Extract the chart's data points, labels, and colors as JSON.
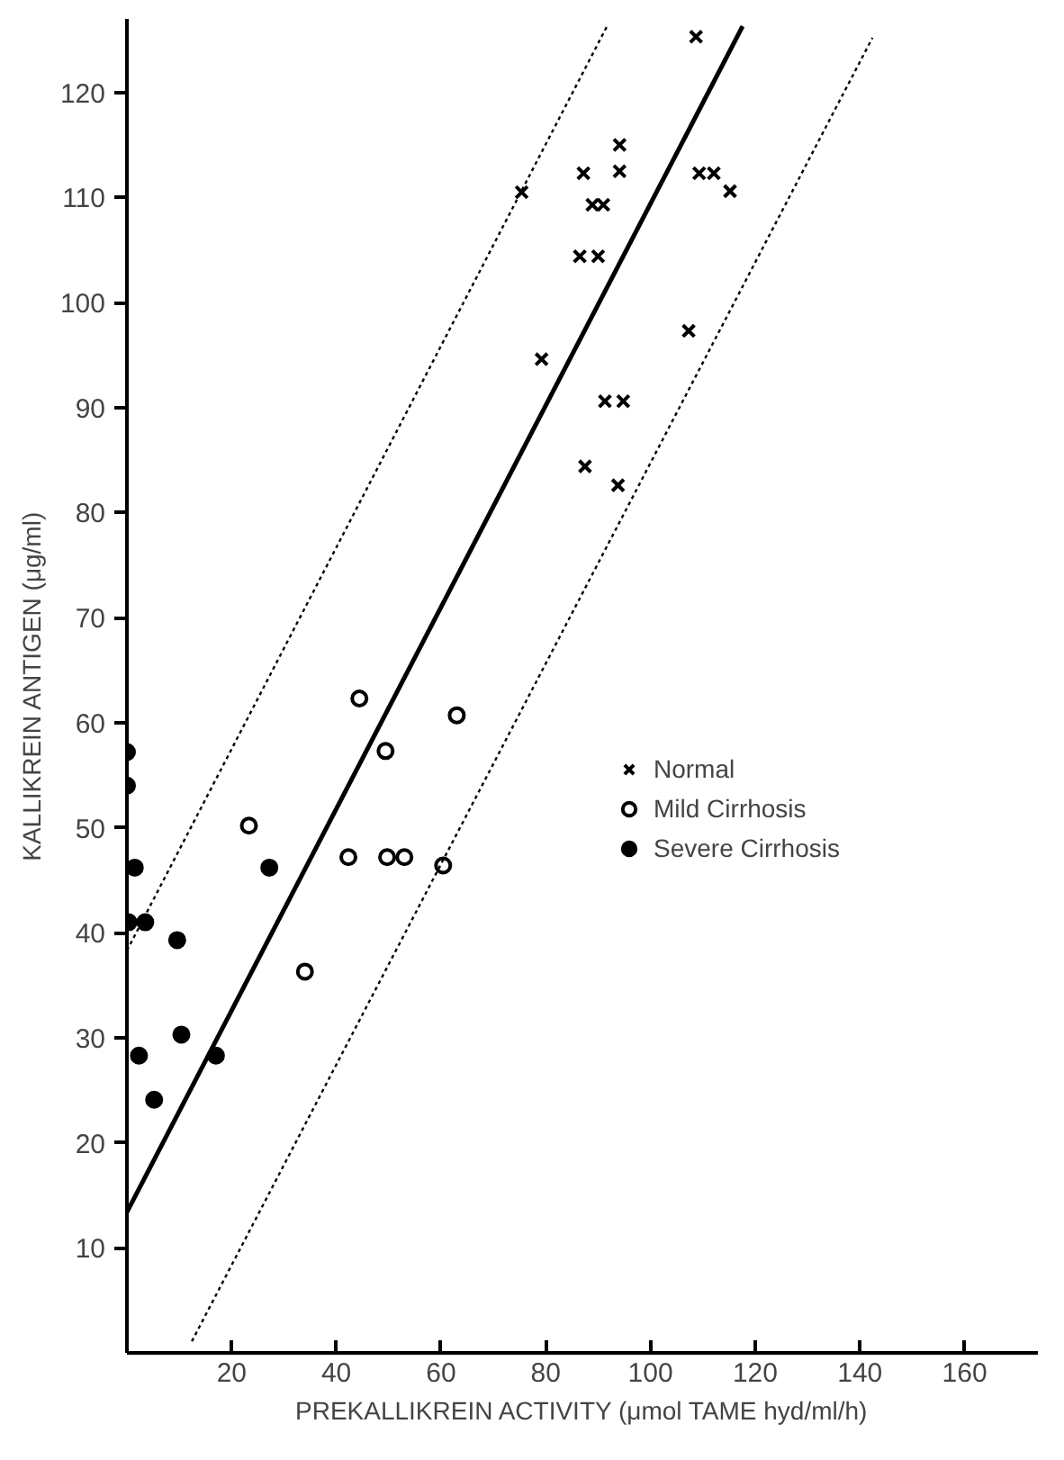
{
  "chart_data": {
    "type": "scatter",
    "xlabel": "PREKALLIKREIN ACTIVITY (μmol TAME hyd/ml/h)",
    "ylabel": "KALLIKREIN ANTIGEN (μg/ml)",
    "xlim": [
      0,
      174
    ],
    "ylim": [
      0,
      127
    ],
    "xticks": [
      20,
      40,
      60,
      80,
      100,
      120,
      140,
      160
    ],
    "yticks": [
      10,
      20,
      30,
      40,
      50,
      60,
      70,
      80,
      90,
      100,
      110,
      120
    ],
    "grid": false,
    "legend": "right",
    "series": [
      {
        "name": "Normal",
        "color": "#000000",
        "marker": "cross",
        "x": [
          108.7,
          75.4,
          87.2,
          94.1,
          94.1,
          88.9,
          91,
          86.5,
          90,
          107.3,
          79.2,
          91.3,
          94.8,
          87.5,
          93.8,
          109.3,
          112.1,
          115.2
        ],
        "values": [
          125.3,
          110.5,
          112.3,
          115,
          112.5,
          109.3,
          109.3,
          104.4,
          104.4,
          97.3,
          94.6,
          90.6,
          90.6,
          84.4,
          82.6,
          112.3,
          112.3,
          110.6
        ]
      },
      {
        "name": "Mild Cirrhosis",
        "color": "#000000",
        "marker": "circle_open",
        "x": [
          44.4,
          63,
          49.4,
          23.3,
          42.3,
          49.7,
          53,
          60.4,
          34
        ],
        "values": [
          62.3,
          60.7,
          57.3,
          50.2,
          47.2,
          47.2,
          47.2,
          46.4,
          36.3
        ]
      },
      {
        "name": "Severe Cirrhosis",
        "color": "#000000",
        "marker": "circle",
        "x": [
          0,
          0,
          1.5,
          0.3,
          3.5,
          9.6,
          27.2,
          10.4,
          2.3,
          17,
          5.2
        ],
        "values": [
          57.2,
          54,
          46.2,
          41,
          41,
          39.3,
          46.2,
          30.3,
          28.3,
          28.3,
          24.1
        ]
      },
      {
        "type": "line",
        "color": "#000000",
        "line_style": "solid",
        "x": [
          0,
          117.6
        ],
        "values": [
          13.4,
          126.3
        ]
      },
      {
        "type": "line",
        "color": "#000000",
        "line_style": "dashed",
        "x": [
          0,
          91.7
        ],
        "values": [
          38.3,
          126.3
        ]
      },
      {
        "type": "line",
        "color": "#000000",
        "line_style": "dashed",
        "x": [
          12.4,
          142.4
        ],
        "values": [
          1.1,
          125.2
        ]
      }
    ]
  }
}
